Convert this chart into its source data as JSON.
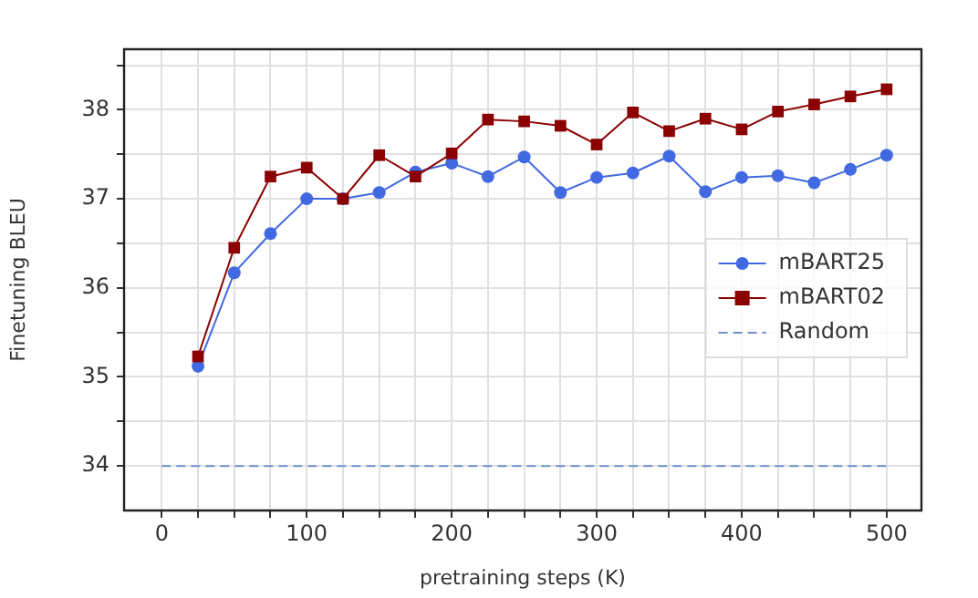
{
  "chart_data": {
    "type": "line",
    "xlabel": "pretraining steps (K)",
    "ylabel": "Finetuning BLEU",
    "xlim": [
      -26,
      524
    ],
    "ylim": [
      33.5,
      38.68
    ],
    "xticks": [
      0,
      {
        "value": 25,
        "label": null
      },
      {
        "value": 50,
        "label": null
      },
      {
        "value": 75,
        "label": null
      },
      100,
      {
        "value": 125,
        "label": null
      },
      {
        "value": 150,
        "label": null
      },
      {
        "value": 175,
        "label": null
      },
      200,
      {
        "value": 225,
        "label": null
      },
      {
        "value": 250,
        "label": null
      },
      {
        "value": 275,
        "label": null
      },
      300,
      {
        "value": 325,
        "label": null
      },
      {
        "value": 350,
        "label": null
      },
      {
        "value": 375,
        "label": null
      },
      400,
      {
        "value": 425,
        "label": null
      },
      {
        "value": 450,
        "label": null
      },
      {
        "value": 475,
        "label": null
      },
      500
    ],
    "yticks": [
      34,
      {
        "value": 34.5,
        "label": null
      },
      35,
      {
        "value": 35.5,
        "label": null
      },
      36,
      {
        "value": 36.5,
        "label": null
      },
      37,
      {
        "value": 37.5,
        "label": null
      },
      38,
      {
        "value": 38.5,
        "label": null
      }
    ],
    "grid": true,
    "legend": "right",
    "x": [
      25,
      50,
      75,
      100,
      125,
      150,
      175,
      200,
      225,
      250,
      275,
      300,
      325,
      350,
      375,
      400,
      425,
      450,
      475,
      500
    ],
    "series": [
      {
        "name": "mBART25",
        "color": "#4169e1",
        "marker": "circle",
        "line_style": "solid",
        "values": [
          35.12,
          36.17,
          36.61,
          37.0,
          37.0,
          37.07,
          37.3,
          37.4,
          37.25,
          37.47,
          37.07,
          37.24,
          37.29,
          37.48,
          37.08,
          37.24,
          37.26,
          37.18,
          37.33,
          37.49
        ]
      },
      {
        "name": "mBART02",
        "color": "#8b0000",
        "marker": "square",
        "line_style": "solid",
        "values": [
          35.23,
          36.45,
          37.25,
          37.35,
          37.0,
          37.49,
          37.25,
          37.51,
          37.89,
          37.87,
          37.82,
          37.61,
          37.97,
          37.76,
          37.9,
          37.78,
          37.98,
          38.06,
          38.15,
          38.23
        ]
      },
      {
        "name": "Random",
        "color": "#7090d0",
        "marker": "none",
        "line_style": "dashed",
        "x": [
          0,
          500
        ],
        "values": [
          34,
          34
        ]
      }
    ]
  }
}
